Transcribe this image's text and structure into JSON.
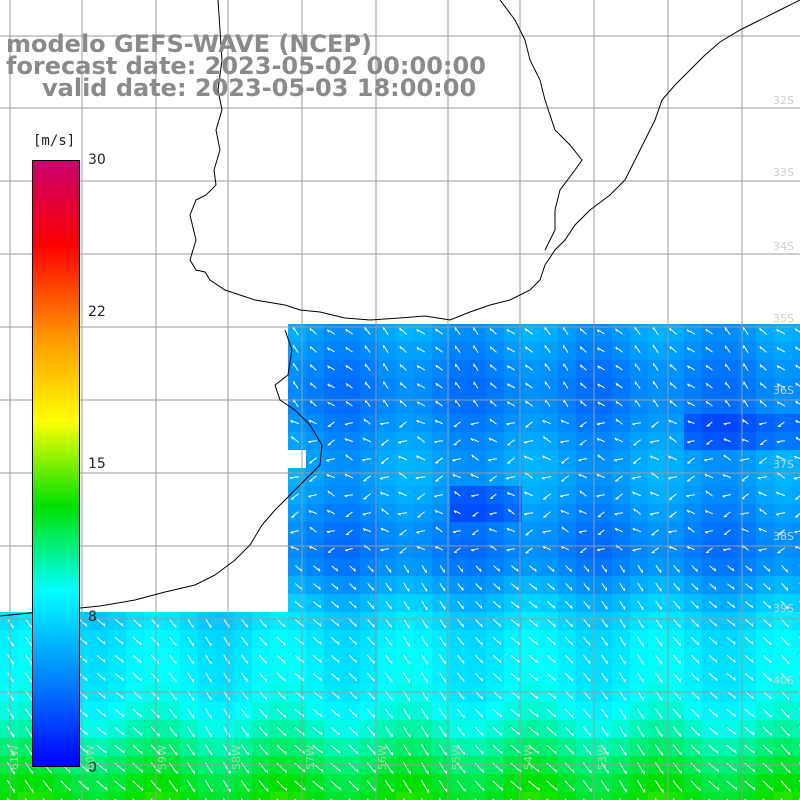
{
  "title": {
    "line1": "modelo GEFS-WAVE (NCEP)",
    "line2": "forecast date: 2023-05-02 00:00:00",
    "line3": "valid date: 2023-05-03 18:00:00"
  },
  "legend": {
    "unit": "[m/s]",
    "ticks": [
      "30",
      "22",
      "15",
      "8",
      "0"
    ],
    "colors": [
      "#c8006e",
      "#ff0000",
      "#ff9600",
      "#ffff00",
      "#00e000",
      "#00ffff",
      "#0080ff",
      "#0000ff"
    ]
  },
  "grid": {
    "lat_labels": [
      "32S",
      "33S",
      "34S",
      "35S",
      "36S",
      "37S",
      "38S",
      "39S",
      "40S"
    ],
    "lon_labels": [
      "61W",
      "60W",
      "59W",
      "58W",
      "57W",
      "56W",
      "55W",
      "54W",
      "53W"
    ]
  },
  "colors": {
    "land": "#ffffff",
    "coast": "#000000",
    "grid_line": "#9a9a9a",
    "vector": "#ffffff"
  }
}
